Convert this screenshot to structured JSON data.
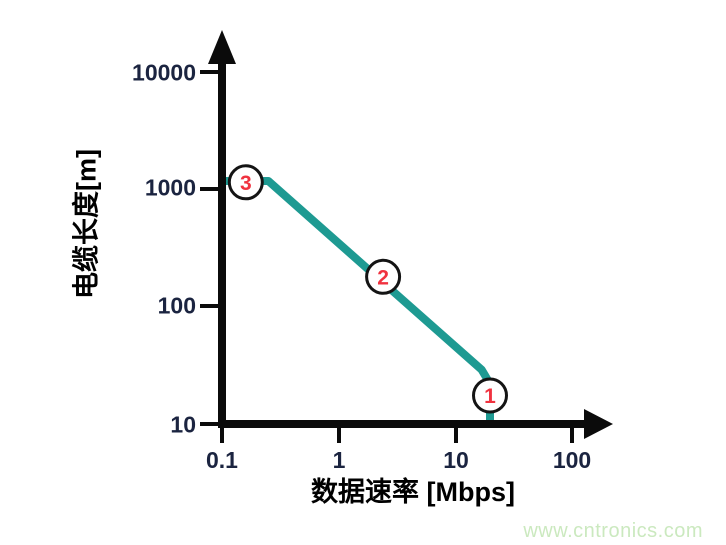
{
  "colors": {
    "curve": "#1E9A92",
    "marker_number": "#F0323F",
    "marker_ring": "#141414",
    "marker_fill": "#ffffff",
    "axis": "#0b0b0b",
    "tick_label": "#1b2440",
    "axis_label": "#000000",
    "watermark": "#cbe9bf",
    "background": "#ffffff"
  },
  "watermark": {
    "text": "www.cntronics.com"
  },
  "chart_data": {
    "type": "line",
    "x_scale": "log",
    "y_scale": "log",
    "x_range": [
      0.1,
      100
    ],
    "y_range": [
      10,
      10000
    ],
    "grid": false,
    "legend": "none",
    "xlabel": "数据速率 [Mbps]",
    "ylabel": "电缆长度[m]",
    "x_ticks": [
      "0.1",
      "1",
      "10",
      "100"
    ],
    "y_ticks": [
      "10",
      "100",
      "1000",
      "10000"
    ],
    "series": [
      {
        "name": "cable-length-vs-data-rate",
        "color": "#1E9A92",
        "points": [
          [
            0.1,
            1180
          ],
          [
            0.25,
            1180
          ],
          [
            16.8,
            29
          ],
          [
            19.8,
            22
          ],
          [
            19.8,
            10
          ]
        ]
      }
    ],
    "annotations": [
      {
        "label": "1",
        "x": 19.8,
        "y": 17.5
      },
      {
        "label": "2",
        "x": 2.4,
        "y": 180
      },
      {
        "label": "3",
        "x": 0.16,
        "y": 1150
      }
    ]
  }
}
